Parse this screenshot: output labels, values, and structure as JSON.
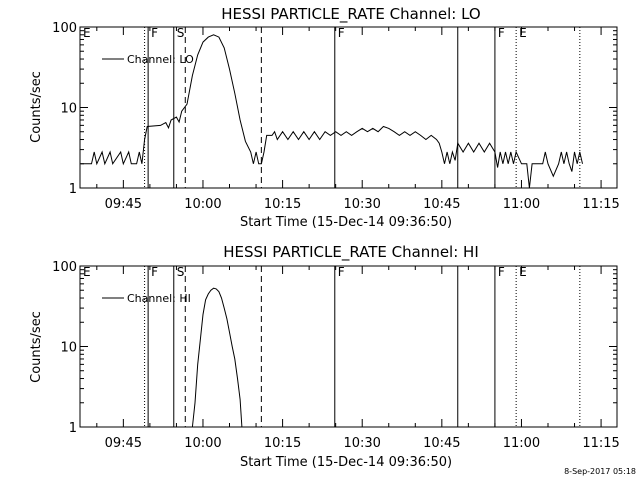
{
  "footer": {
    "timestamp": "8-Sep-2017 05:18"
  },
  "chart_data": [
    {
      "type": "line",
      "title": "HESSI PARTICLE_RATE Channel: LO",
      "xlabel": "Start Time (15-Dec-14 09:36:50)",
      "ylabel": "Counts/sec",
      "yscale": "log",
      "ylim": [
        1,
        100
      ],
      "xlim": [
        "09:36:50",
        "11:18:00"
      ],
      "x_ticks": [
        "09:45",
        "10:00",
        "10:15",
        "10:30",
        "10:45",
        "11:00",
        "11:15"
      ],
      "y_ticks": [
        "1",
        "10",
        "100"
      ],
      "legend": {
        "label": "Channel: LO",
        "position": "top-left"
      },
      "markers": [
        {
          "time": "09:36:50",
          "label": "E",
          "style": "none"
        },
        {
          "time": "09:49:00",
          "label": "",
          "style": "dotted"
        },
        {
          "time": "09:49:40",
          "label": "F",
          "style": "solid"
        },
        {
          "time": "09:54:30",
          "label": "S",
          "style": "solid"
        },
        {
          "time": "09:56:40",
          "label": "",
          "style": "dashed"
        },
        {
          "time": "10:11:00",
          "label": "",
          "style": "dashed"
        },
        {
          "time": "10:24:50",
          "label": "F",
          "style": "solid"
        },
        {
          "time": "10:48:00",
          "label": "",
          "style": "solid"
        },
        {
          "time": "10:55:00",
          "label": "F",
          "style": "solid"
        },
        {
          "time": "10:59:00",
          "label": "E",
          "style": "dotted"
        },
        {
          "time": "11:11:00",
          "label": "",
          "style": "dotted"
        }
      ],
      "series": [
        {
          "name": "Channel: LO",
          "points": [
            [
              "09:37:00",
              2
            ],
            [
              "09:39:00",
              2
            ],
            [
              "09:39:30",
              2.8
            ],
            [
              "09:40:00",
              2
            ],
            [
              "09:41:00",
              2.8
            ],
            [
              "09:41:30",
              2
            ],
            [
              "09:42:30",
              2.8
            ],
            [
              "09:43:00",
              2
            ],
            [
              "09:44:30",
              2.8
            ],
            [
              "09:45:00",
              2
            ],
            [
              "09:46:00",
              2.8
            ],
            [
              "09:46:30",
              2
            ],
            [
              "09:47:30",
              2
            ],
            [
              "09:48:00",
              2.8
            ],
            [
              "09:48:30",
              2
            ],
            [
              "09:49:00",
              4
            ],
            [
              "09:49:30",
              5.8
            ],
            [
              "09:52:00",
              6
            ],
            [
              "09:53:00",
              6.5
            ],
            [
              "09:53:30",
              5.6
            ],
            [
              "09:54:00",
              7
            ],
            [
              "09:55:00",
              7.6
            ],
            [
              "09:55:30",
              6.6
            ],
            [
              "09:56:00",
              9
            ],
            [
              "09:57:00",
              11
            ],
            [
              "09:58:00",
              25
            ],
            [
              "09:59:00",
              45
            ],
            [
              "10:00:00",
              65
            ],
            [
              "10:01:00",
              75
            ],
            [
              "10:02:00",
              80
            ],
            [
              "10:03:00",
              75
            ],
            [
              "10:04:00",
              55
            ],
            [
              "10:05:00",
              30
            ],
            [
              "10:06:00",
              15
            ],
            [
              "10:07:00",
              7
            ],
            [
              "10:08:00",
              3.8
            ],
            [
              "10:09:00",
              2.8
            ],
            [
              "10:09:30",
              2
            ],
            [
              "10:10:00",
              2.8
            ],
            [
              "10:10:30",
              2
            ],
            [
              "10:11:00",
              2
            ],
            [
              "10:11:30",
              2.8
            ],
            [
              "10:12:00",
              4.5
            ],
            [
              "10:13:00",
              4.5
            ],
            [
              "10:13:30",
              5
            ],
            [
              "10:14:00",
              4
            ],
            [
              "10:15:00",
              5
            ],
            [
              "10:16:00",
              4
            ],
            [
              "10:17:00",
              5
            ],
            [
              "10:18:00",
              4
            ],
            [
              "10:19:00",
              5
            ],
            [
              "10:20:00",
              4
            ],
            [
              "10:21:00",
              5
            ],
            [
              "10:22:00",
              4
            ],
            [
              "10:23:00",
              5
            ],
            [
              "10:24:00",
              4.5
            ],
            [
              "10:25:00",
              5
            ],
            [
              "10:26:00",
              4.5
            ],
            [
              "10:27:00",
              5
            ],
            [
              "10:28:00",
              4.5
            ],
            [
              "10:29:00",
              5
            ],
            [
              "10:30:00",
              5.5
            ],
            [
              "10:31:00",
              5
            ],
            [
              "10:32:00",
              5.5
            ],
            [
              "10:33:00",
              5
            ],
            [
              "10:34:00",
              5.8
            ],
            [
              "10:35:00",
              5.5
            ],
            [
              "10:36:00",
              5
            ],
            [
              "10:37:00",
              4.5
            ],
            [
              "10:38:00",
              5
            ],
            [
              "10:39:00",
              4.5
            ],
            [
              "10:40:00",
              5
            ],
            [
              "10:41:00",
              4.5
            ],
            [
              "10:42:00",
              4
            ],
            [
              "10:43:00",
              4.5
            ],
            [
              "10:44:00",
              4
            ],
            [
              "10:44:30",
              3.6
            ],
            [
              "10:45:00",
              2.8
            ],
            [
              "10:45:30",
              2
            ],
            [
              "10:46:00",
              2.8
            ],
            [
              "10:46:30",
              2
            ],
            [
              "10:47:00",
              2.8
            ],
            [
              "10:47:30",
              2.2
            ],
            [
              "10:48:00",
              3.6
            ],
            [
              "10:49:00",
              2.8
            ],
            [
              "10:50:00",
              3.6
            ],
            [
              "10:51:00",
              2.8
            ],
            [
              "10:52:00",
              3.6
            ],
            [
              "10:53:00",
              2.8
            ],
            [
              "10:54:00",
              3.6
            ],
            [
              "10:55:00",
              2.8
            ],
            [
              "10:55:30",
              1.8
            ],
            [
              "10:56:00",
              2.8
            ],
            [
              "10:56:30",
              2
            ],
            [
              "10:57:00",
              2.8
            ],
            [
              "10:57:30",
              2
            ],
            [
              "10:58:00",
              2.8
            ],
            [
              "10:58:30",
              2
            ],
            [
              "10:59:00",
              2.8
            ],
            [
              "11:00:00",
              2
            ],
            [
              "11:01:00",
              2
            ],
            [
              "11:01:30",
              1
            ],
            [
              "11:02:00",
              2
            ],
            [
              "11:04:00",
              2
            ],
            [
              "11:04:30",
              2.8
            ],
            [
              "11:05:00",
              2
            ],
            [
              "11:06:00",
              1.4
            ],
            [
              "11:07:00",
              2
            ],
            [
              "11:07:30",
              2.8
            ],
            [
              "11:08:00",
              2
            ],
            [
              "11:08:30",
              2.8
            ],
            [
              "11:09:00",
              2
            ],
            [
              "11:09:30",
              1.6
            ],
            [
              "11:10:00",
              2.8
            ],
            [
              "11:10:30",
              2
            ],
            [
              "11:11:00",
              2.8
            ],
            [
              "11:11:30",
              2
            ]
          ]
        }
      ]
    },
    {
      "type": "line",
      "title": "HESSI PARTICLE_RATE Channel: HI",
      "xlabel": "Start Time (15-Dec-14 09:36:50)",
      "ylabel": "Counts/sec",
      "yscale": "log",
      "ylim": [
        1,
        100
      ],
      "xlim": [
        "09:36:50",
        "11:18:00"
      ],
      "x_ticks": [
        "09:45",
        "10:00",
        "10:15",
        "10:30",
        "10:45",
        "11:00",
        "11:15"
      ],
      "y_ticks": [
        "1",
        "10",
        "100"
      ],
      "legend": {
        "label": "Channel: HI",
        "position": "top-left"
      },
      "markers": [
        {
          "time": "09:36:50",
          "label": "E",
          "style": "none"
        },
        {
          "time": "09:49:00",
          "label": "",
          "style": "dotted"
        },
        {
          "time": "09:49:40",
          "label": "F",
          "style": "solid"
        },
        {
          "time": "09:54:30",
          "label": "S",
          "style": "solid"
        },
        {
          "time": "09:56:40",
          "label": "",
          "style": "dashed"
        },
        {
          "time": "10:11:00",
          "label": "",
          "style": "dashed"
        },
        {
          "time": "10:24:50",
          "label": "F",
          "style": "solid"
        },
        {
          "time": "10:48:00",
          "label": "",
          "style": "solid"
        },
        {
          "time": "10:55:00",
          "label": "F",
          "style": "solid"
        },
        {
          "time": "10:59:00",
          "label": "E",
          "style": "dotted"
        },
        {
          "time": "11:11:00",
          "label": "",
          "style": "dotted"
        }
      ],
      "series": [
        {
          "name": "Channel: HI",
          "points": [
            [
              "09:58:00",
              1
            ],
            [
              "09:58:30",
              2
            ],
            [
              "09:59:00",
              6
            ],
            [
              "09:59:30",
              12
            ],
            [
              "10:00:00",
              25
            ],
            [
              "10:00:30",
              38
            ],
            [
              "10:01:00",
              45
            ],
            [
              "10:01:30",
              50
            ],
            [
              "10:02:00",
              53
            ],
            [
              "10:02:30",
              52
            ],
            [
              "10:03:00",
              48
            ],
            [
              "10:03:30",
              40
            ],
            [
              "10:04:00",
              30
            ],
            [
              "10:04:30",
              22
            ],
            [
              "10:05:00",
              15
            ],
            [
              "10:05:30",
              10
            ],
            [
              "10:06:00",
              7
            ],
            [
              "10:06:30",
              4
            ],
            [
              "10:07:00",
              2.2
            ],
            [
              "10:07:20",
              1
            ]
          ]
        }
      ]
    }
  ]
}
